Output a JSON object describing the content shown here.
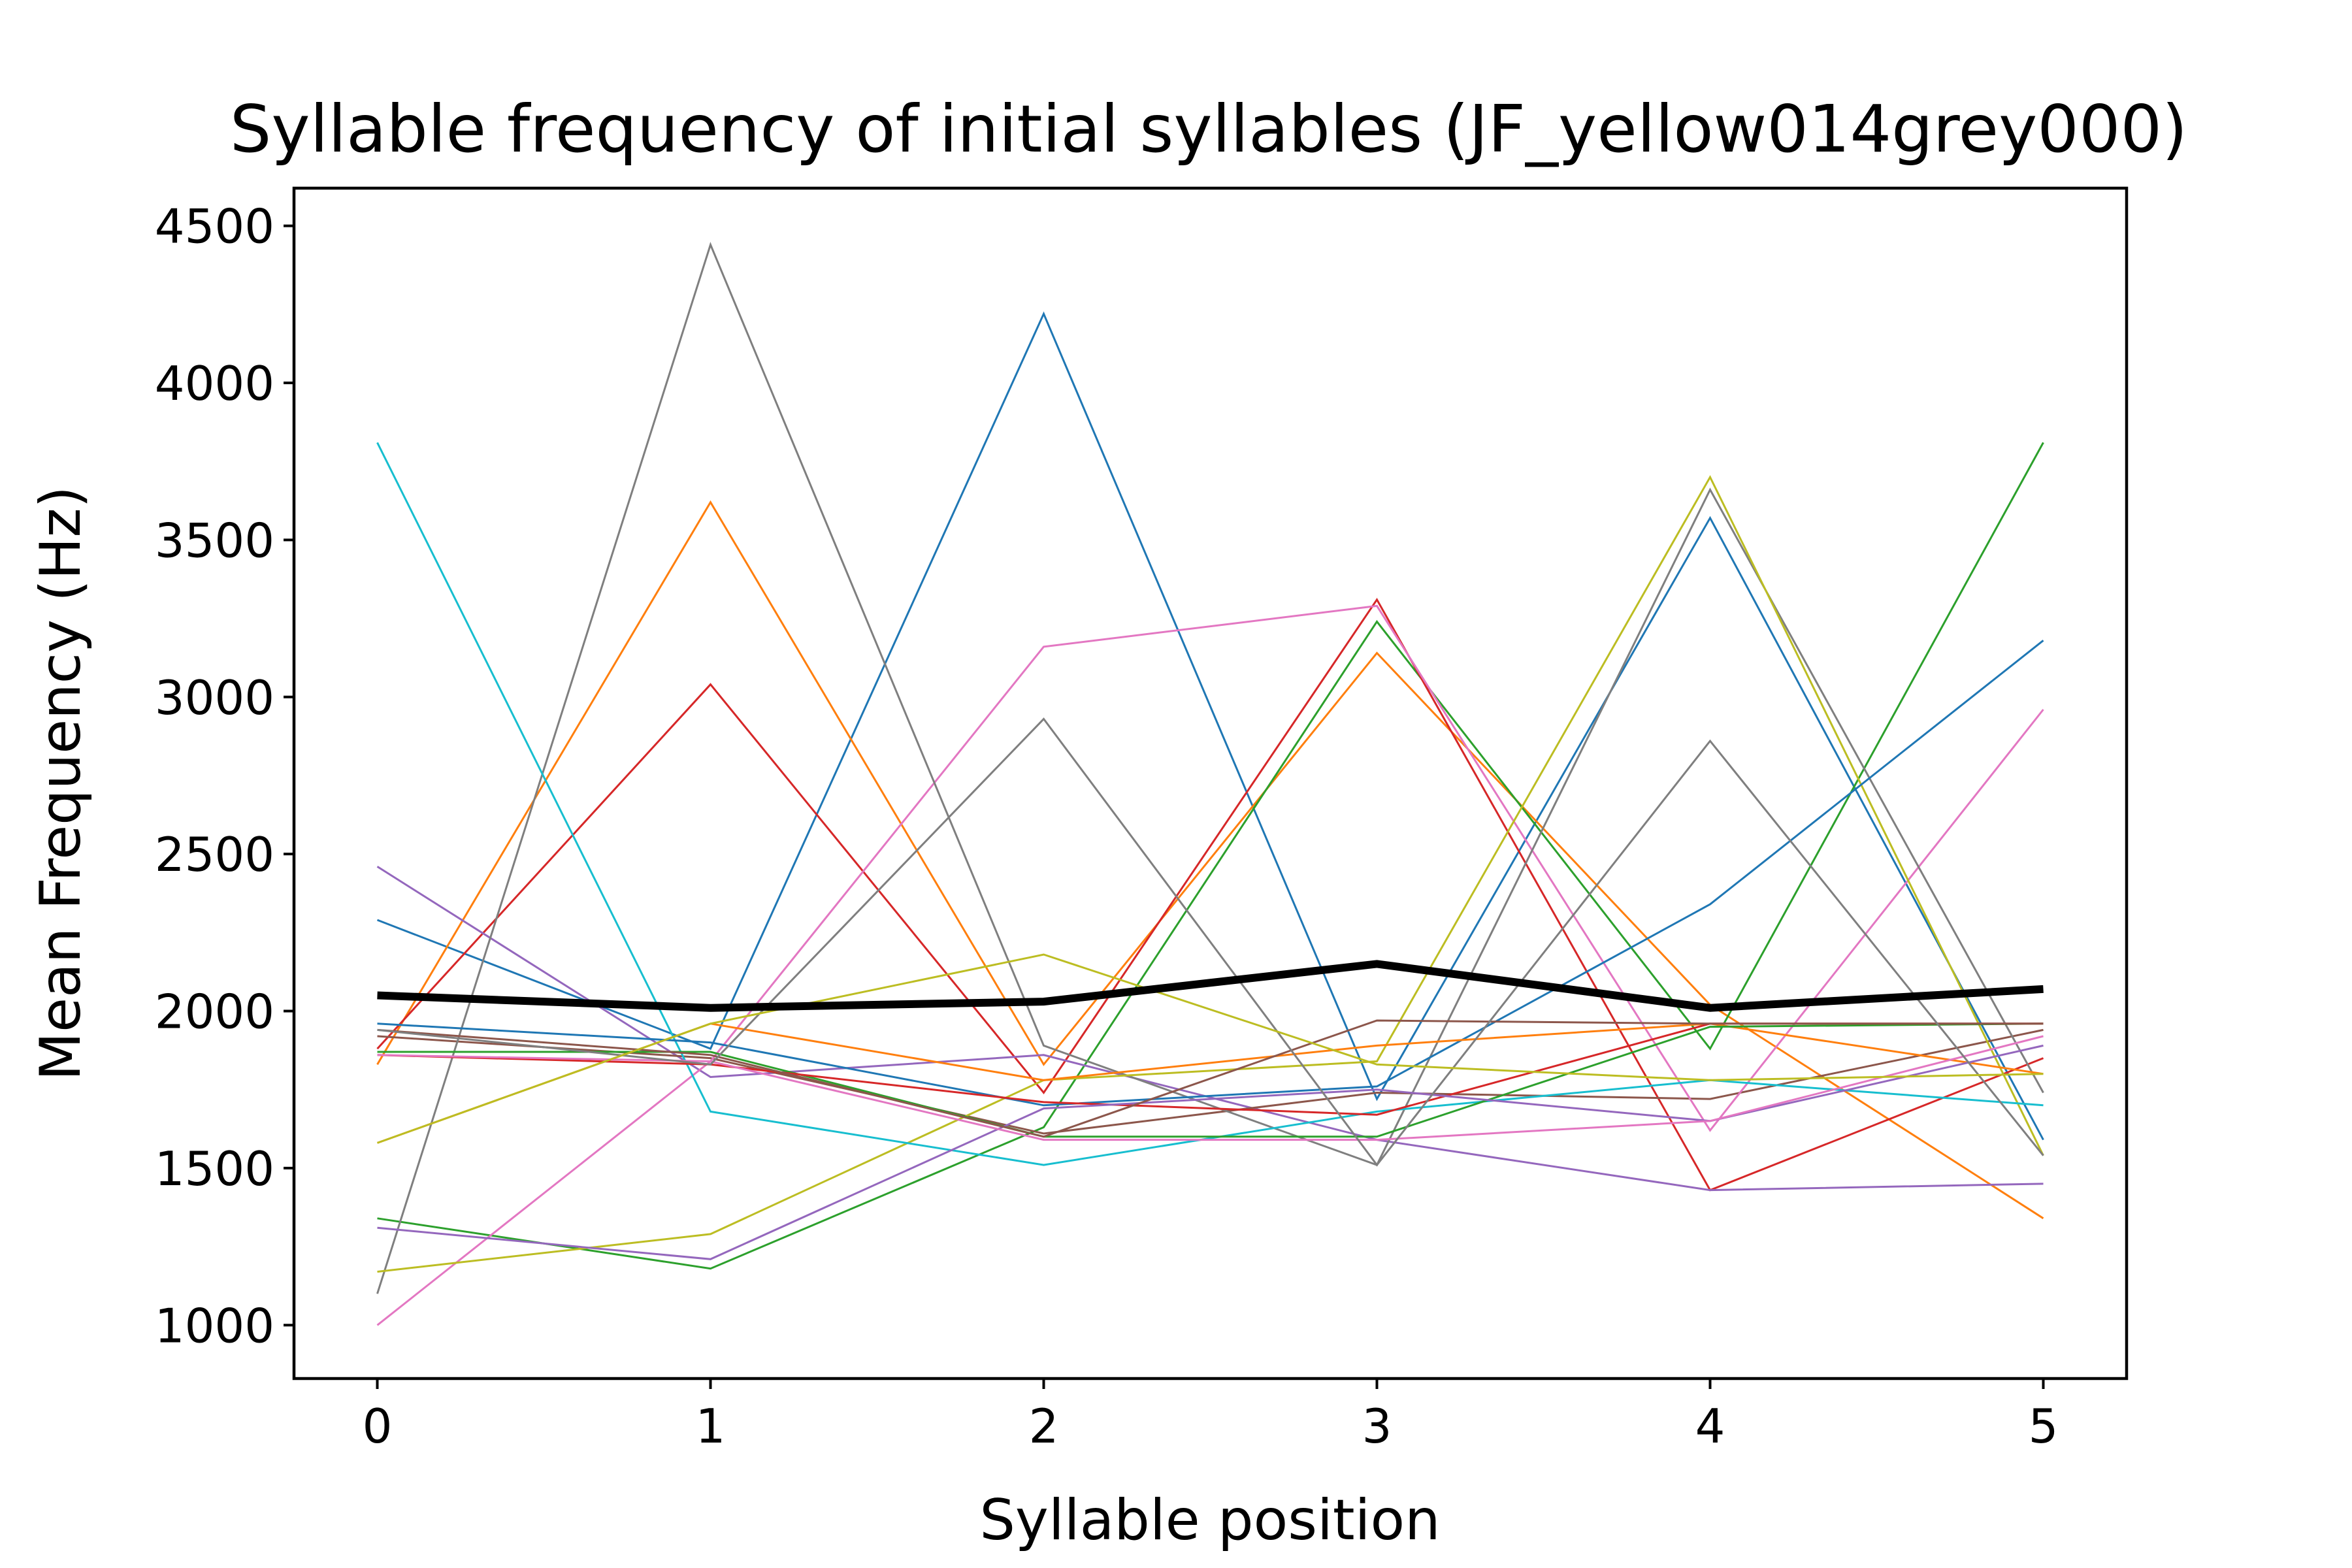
{
  "chart_data": {
    "type": "line",
    "title": "Syllable frequency of initial syllables (JF_yellow014grey000)",
    "xlabel": "Syllable position",
    "ylabel": "Mean Frequency (Hz)",
    "xlim": [
      -0.25,
      5.25
    ],
    "ylim": [
      830,
      4620
    ],
    "x": [
      0,
      1,
      2,
      3,
      4,
      5
    ],
    "xticks": [
      "0",
      "1",
      "2",
      "3",
      "4",
      "5"
    ],
    "yticks": [
      "1000",
      "1500",
      "2000",
      "2500",
      "3000",
      "3500",
      "4000",
      "4500"
    ],
    "grid": false,
    "legend": "none",
    "series": [
      {
        "color": "#1f77b4",
        "values": [
          2290,
          1880,
          4220,
          1720,
          3570,
          1590
        ]
      },
      {
        "color": "#ff7f0e",
        "values": [
          1830,
          3620,
          1830,
          3140,
          2020,
          1340
        ]
      },
      {
        "color": "#2ca02c",
        "values": [
          1340,
          1180,
          1630,
          3240,
          1880,
          3810
        ]
      },
      {
        "color": "#d62728",
        "values": [
          1880,
          3040,
          1740,
          3310,
          1430,
          1850
        ]
      },
      {
        "color": "#9467bd",
        "values": [
          2460,
          1790,
          1860,
          1590,
          1430,
          1450
        ]
      },
      {
        "color": "#8c564b",
        "values": [
          1920,
          1850,
          1610,
          1740,
          1720,
          1940
        ]
      },
      {
        "color": "#e377c2",
        "values": [
          1000,
          1840,
          3160,
          3290,
          1620,
          2960
        ]
      },
      {
        "color": "#7f7f7f",
        "values": [
          1100,
          4440,
          1890,
          1510,
          3660,
          1740
        ]
      },
      {
        "color": "#bcbd22",
        "values": [
          1170,
          1290,
          1780,
          1840,
          3700,
          1540
        ]
      },
      {
        "color": "#17becf",
        "values": [
          3810,
          1680,
          1510,
          1680,
          1780,
          1700
        ]
      },
      {
        "color": "#1f77b4",
        "values": [
          1960,
          1900,
          1700,
          1760,
          2340,
          3180
        ]
      },
      {
        "color": "#ff7f0e",
        "values": [
          1580,
          1960,
          1780,
          1890,
          1960,
          1800
        ]
      },
      {
        "color": "#2ca02c",
        "values": [
          1870,
          1870,
          1600,
          1600,
          1950,
          1960
        ]
      },
      {
        "color": "#d62728",
        "values": [
          1860,
          1830,
          1710,
          1670,
          1960,
          1960
        ]
      },
      {
        "color": "#9467bd",
        "values": [
          1310,
          1210,
          1690,
          1750,
          1650,
          1890
        ]
      },
      {
        "color": "#8c564b",
        "values": [
          1940,
          1860,
          1600,
          1970,
          1960,
          1960
        ]
      },
      {
        "color": "#e377c2",
        "values": [
          1860,
          1840,
          1590,
          1590,
          1650,
          1920
        ]
      },
      {
        "color": "#7f7f7f",
        "values": [
          1940,
          1830,
          2930,
          1510,
          2860,
          1540
        ]
      },
      {
        "color": "#bcbd22",
        "values": [
          1580,
          1960,
          2180,
          1830,
          1780,
          1800
        ]
      },
      {
        "color": "#000000",
        "values": [
          2050,
          2010,
          2030,
          2150,
          2010,
          2070
        ],
        "bold": true
      }
    ]
  }
}
